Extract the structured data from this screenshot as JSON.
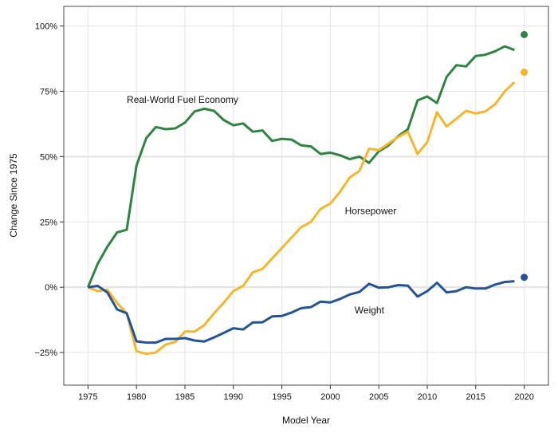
{
  "chart_data": {
    "type": "line",
    "title": "",
    "xlabel": "Model Year",
    "ylabel": "Change Since 1975",
    "xlim": [
      1972.5,
      2022.5
    ],
    "ylim": [
      -37.5,
      107.5
    ],
    "grid": true,
    "x_ticks": [
      1975,
      1980,
      1985,
      1990,
      1995,
      2000,
      2005,
      2010,
      2015,
      2020
    ],
    "y_ticks": [
      -25,
      0,
      25,
      50,
      75,
      100
    ],
    "y_tick_labels": [
      "−25%",
      "0%",
      "25%",
      "50%",
      "75%",
      "100%"
    ],
    "x_start": 1975,
    "series": [
      {
        "name": "Real-World Fuel Economy",
        "color": "#2e8540",
        "values": [
          0,
          9,
          15.5,
          21,
          22,
          46.5,
          57,
          61.3,
          60.5,
          60.8,
          63,
          67.3,
          68.3,
          67.5,
          64,
          62,
          62.7,
          59.5,
          60,
          56,
          56.8,
          56.5,
          54.3,
          53.9,
          51,
          51.5,
          50.5,
          49,
          50,
          47.6,
          52,
          54.3,
          57.8,
          60.5,
          71.5,
          73,
          70.5,
          80.5,
          85,
          84.5,
          88.5,
          89,
          90.3,
          92.2,
          90.8
        ],
        "point_2020": 96.7
      },
      {
        "name": "Horsepower",
        "color": "#f7b52c",
        "values": [
          0,
          -1.5,
          -1,
          -6,
          -10,
          -24.5,
          -25.5,
          -25,
          -22,
          -21,
          -17,
          -17,
          -14.5,
          -10,
          -6,
          -1.5,
          0.5,
          5.7,
          7,
          11,
          15,
          19,
          23,
          25,
          30,
          32,
          36.5,
          42,
          44.5,
          53,
          52.5,
          55,
          57.5,
          59.5,
          51,
          55.5,
          67,
          61.5,
          64.5,
          67.5,
          66.5,
          67.3,
          70,
          75,
          78.5
        ],
        "point_2020": 82.3
      },
      {
        "name": "Weight",
        "color": "#245496",
        "values": [
          0,
          0.5,
          -2,
          -8.5,
          -10,
          -20.7,
          -21.2,
          -21.2,
          -19.8,
          -19.8,
          -19.5,
          -20.4,
          -20.8,
          -19.2,
          -17.5,
          -15.7,
          -16.2,
          -13.5,
          -13.4,
          -11.2,
          -11,
          -9.7,
          -8,
          -7.6,
          -5.5,
          -5.8,
          -4.5,
          -2.8,
          -1.8,
          1.3,
          -0.2,
          0,
          0.8,
          0.6,
          -3.6,
          -1.5,
          1.7,
          -2,
          -1.5,
          0,
          -0.5,
          -0.5,
          1,
          2,
          2.3
        ],
        "point_2020": 3.8
      }
    ],
    "annotations": [
      {
        "text": "Real-World Fuel Economy",
        "x": 1979,
        "y": 70.5
      },
      {
        "text": "Horsepower",
        "x": 2001.5,
        "y": 28
      },
      {
        "text": "Weight",
        "x": 2002.5,
        "y": -10
      }
    ]
  }
}
